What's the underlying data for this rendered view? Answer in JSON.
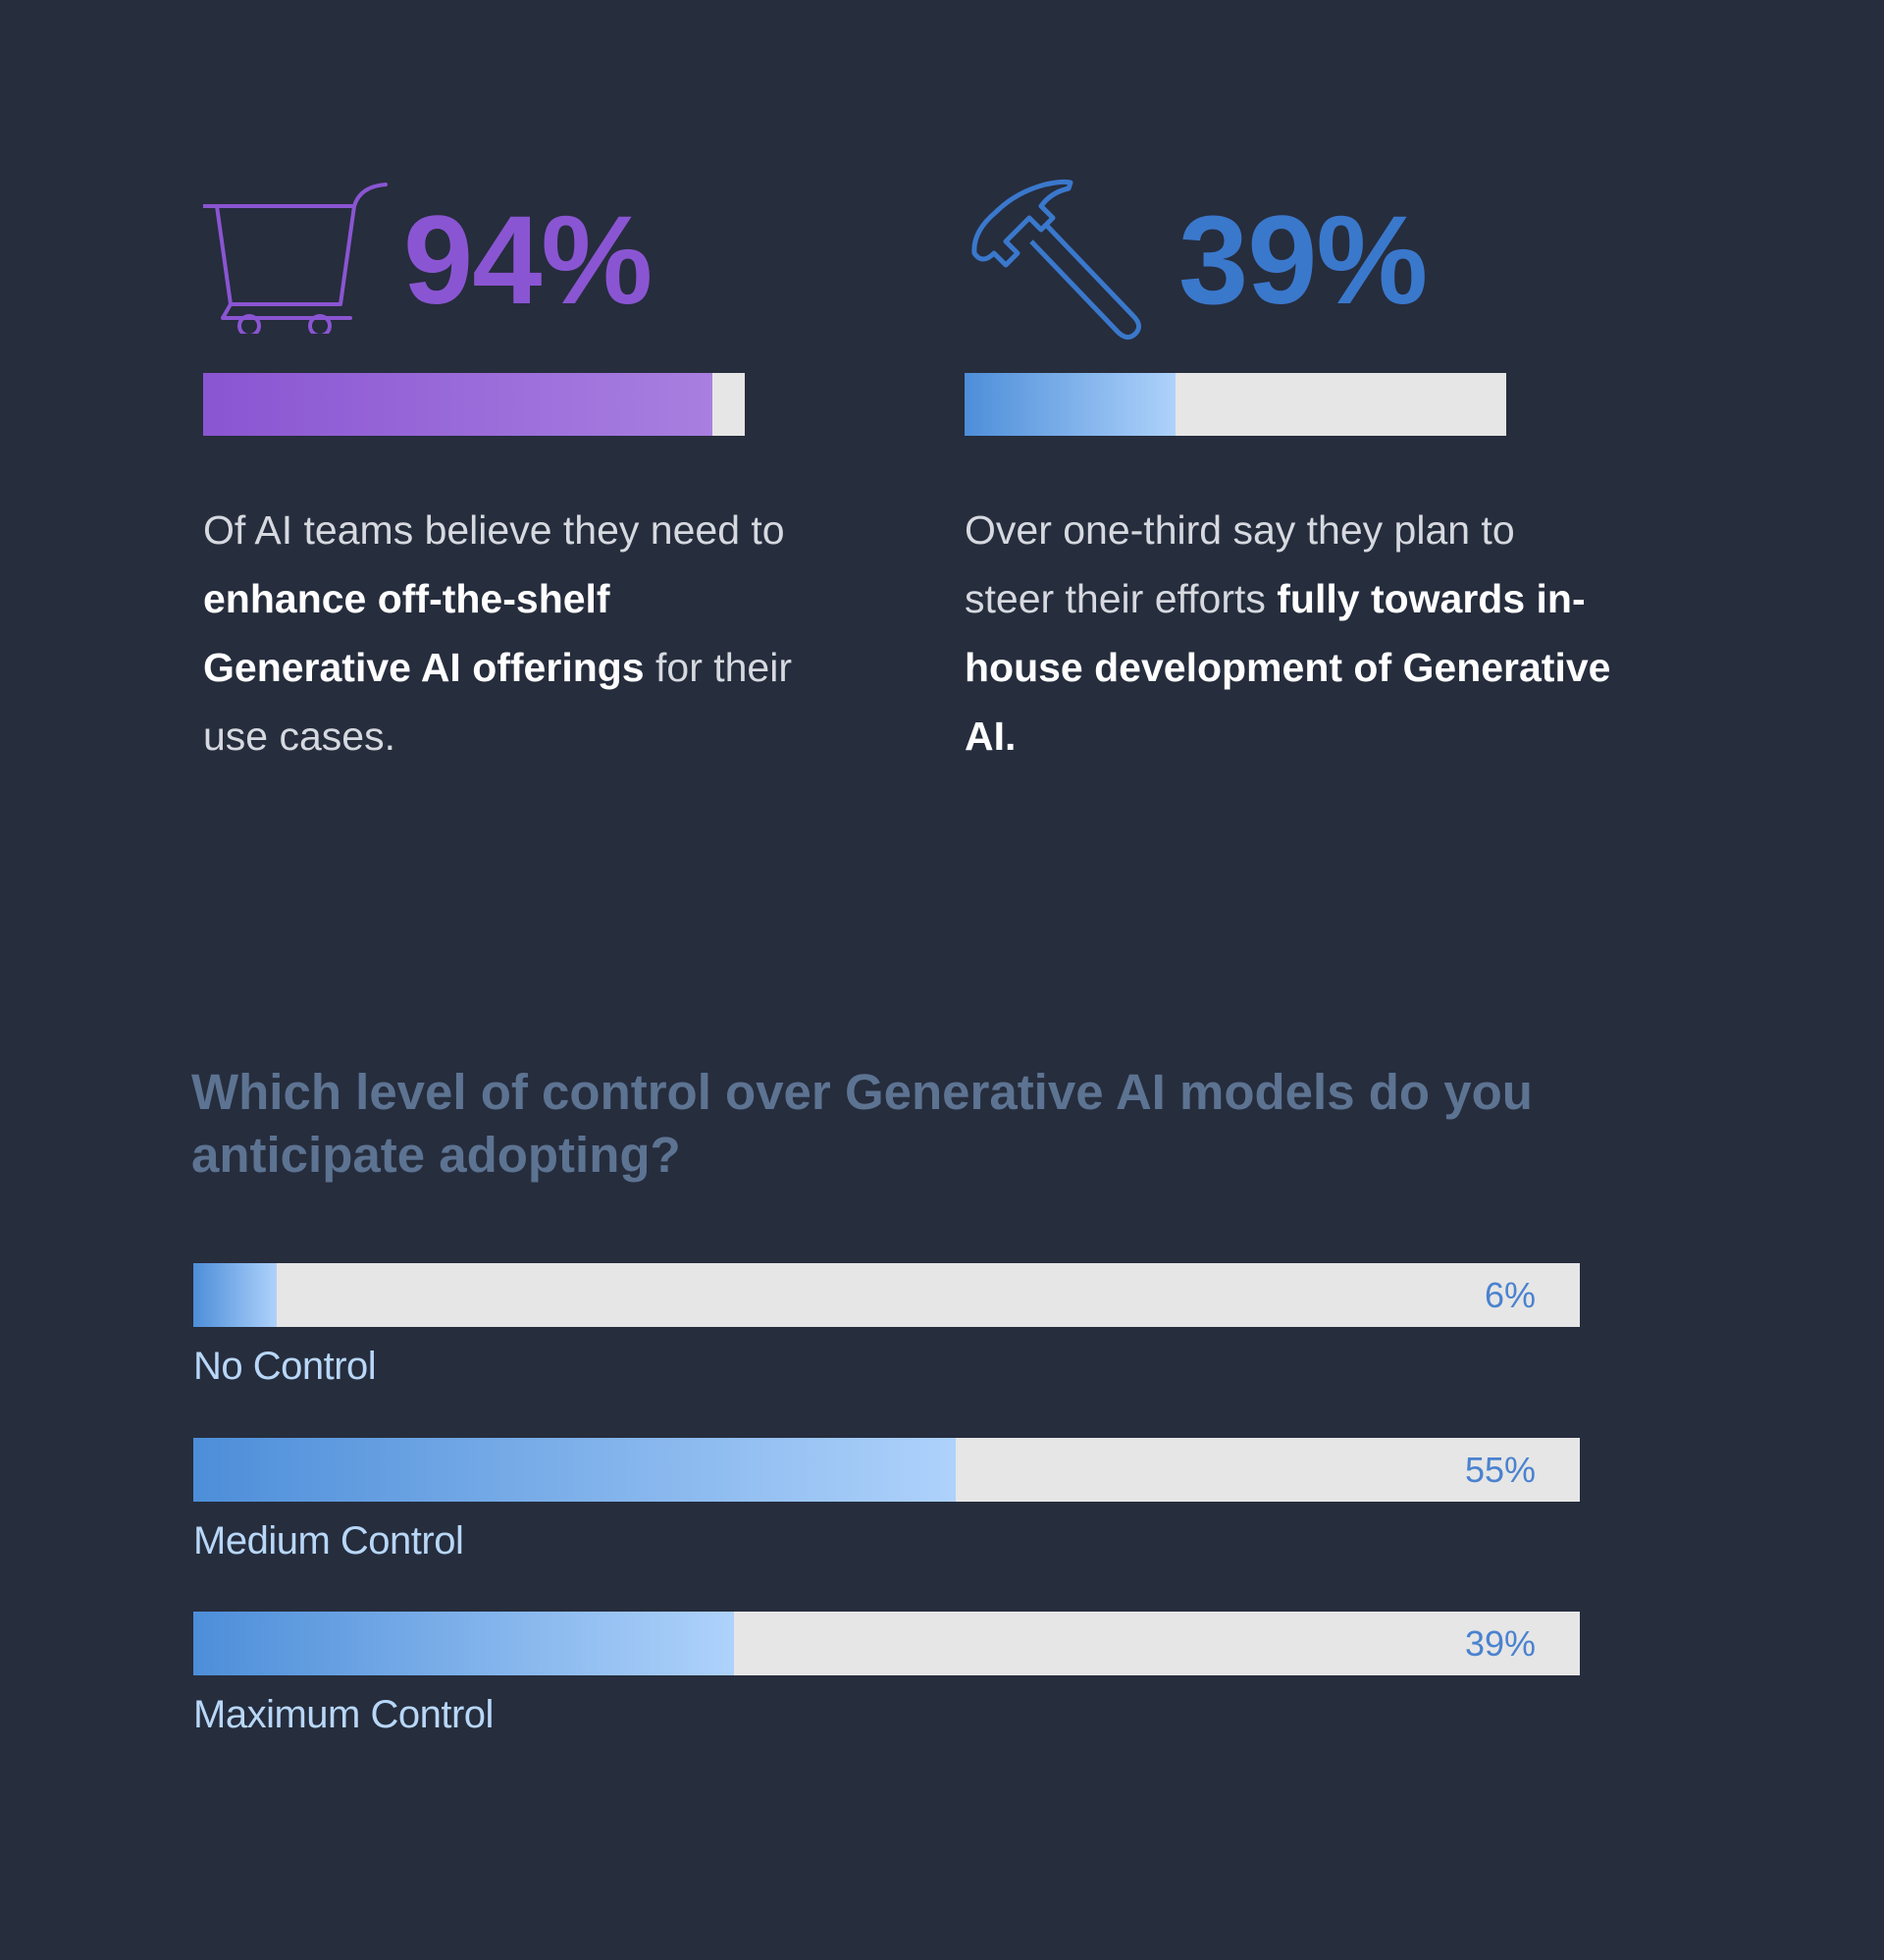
{
  "colors": {
    "background": "#262d3d",
    "purple": "#8a55d2",
    "blue": "#3a78cc",
    "track": "#e6e6e6",
    "question": "#5d7392",
    "label": "#b8d7f8"
  },
  "stats": {
    "purchase": {
      "icon": "shopping-cart-icon",
      "number": "94%",
      "value": 94,
      "text_1": "Of AI teams believe they need to ",
      "bold": "enhance off-the-shelf Generative AI offerings",
      "text_2": " for their use cases."
    },
    "build": {
      "icon": "hammer-icon",
      "number": "39%",
      "value": 39,
      "text_1": "Over one-third say they plan to steer their efforts ",
      "bold": "fully towards in-house development of Generative AI.",
      "text_2": ""
    }
  },
  "chart_data": {
    "type": "bar",
    "orientation": "horizontal",
    "title": "Which level of control over Generative AI models do you anticipate adopting?",
    "categories": [
      "No Control",
      "Medium Control",
      "Maximum Control"
    ],
    "values": [
      6,
      55,
      39
    ],
    "value_labels": [
      "6%",
      "55%",
      "39%"
    ],
    "xlim": [
      0,
      100
    ],
    "unit": "%"
  }
}
